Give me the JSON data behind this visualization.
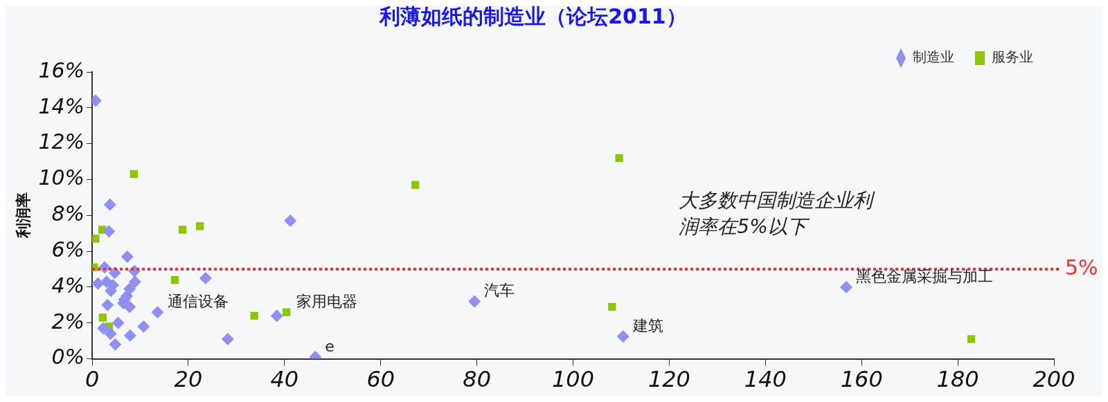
{
  "chart_data": {
    "type": "scatter",
    "title": "利薄如纸的制造业（论坛2011）",
    "ylabel": "利润率",
    "xlim": [
      0,
      200
    ],
    "xticks": [
      0,
      20,
      40,
      60,
      80,
      100,
      120,
      140,
      160,
      180,
      200
    ],
    "ylim": [
      0,
      16
    ],
    "yticks": [
      {
        "value": 0,
        "label": "0%"
      },
      {
        "value": 2,
        "label": "2%"
      },
      {
        "value": 4,
        "label": "4%"
      },
      {
        "value": 6,
        "label": "6%"
      },
      {
        "value": 8,
        "label": "8%"
      },
      {
        "value": 10,
        "label": "10%"
      },
      {
        "value": 12,
        "label": "12%"
      },
      {
        "value": 14,
        "label": "14%"
      },
      {
        "value": 16,
        "label": "16%"
      }
    ],
    "grid": false,
    "legend": "top right",
    "series": [
      {
        "name": "制造业",
        "color": "#8f8ff5",
        "marker": "diamond",
        "x": [
          0.7,
          3.7,
          3.5,
          7.3,
          2.6,
          4.7,
          8.8,
          1.2,
          3.0,
          4.3,
          8.9,
          3.9,
          7.8,
          7.2,
          6.7,
          3.2,
          6.5,
          7.8,
          13.6,
          5.4,
          2.3,
          10.7,
          3.8,
          7.9,
          4.8,
          23.6,
          28.2,
          38.4,
          46.4,
          41.2,
          79.5,
          110.4,
          156.8
        ],
        "values": [
          14.4,
          8.6,
          7.1,
          5.7,
          5.1,
          4.8,
          4.9,
          4.2,
          4.3,
          4.1,
          4.3,
          3.8,
          3.9,
          3.5,
          3.3,
          3.0,
          3.1,
          2.9,
          2.6,
          2.0,
          1.7,
          1.8,
          1.4,
          1.3,
          0.8,
          4.5,
          1.1,
          2.4,
          0.1,
          7.7,
          3.2,
          1.25,
          4.0
        ]
      },
      {
        "name": "服务业",
        "color": "#8cc800",
        "marker": "square",
        "x": [
          8.7,
          18.8,
          22.4,
          0.7,
          2.1,
          0.4,
          17.2,
          2.2,
          3.5,
          33.7,
          40.4,
          67.2,
          109.6,
          108.1,
          182.8
        ],
        "values": [
          10.3,
          7.2,
          7.4,
          6.7,
          7.2,
          5.1,
          4.4,
          2.3,
          1.8,
          2.4,
          2.6,
          9.7,
          11.2,
          2.9,
          1.1
        ]
      }
    ],
    "ref_lines": [
      {
        "axis": "y",
        "value": 5,
        "label": "5%",
        "color": "#ff2a2a",
        "line_style": "dotted"
      }
    ],
    "annotations": [
      {
        "text": "通信设备",
        "x": 13.6,
        "y": 2.6
      },
      {
        "text": "家用电器",
        "x": 40.4,
        "y": 2.6
      },
      {
        "text": "e",
        "x": 46.4,
        "y": 0.1
      },
      {
        "text": "汽车",
        "x": 79.5,
        "y": 3.2
      },
      {
        "text": "建筑",
        "x": 110.4,
        "y": 1.25
      },
      {
        "text": "黑色金属采掘与加工",
        "x": 156.8,
        "y": 4.0
      },
      "大多数中国制造企业利润率在5%以下"
    ]
  }
}
